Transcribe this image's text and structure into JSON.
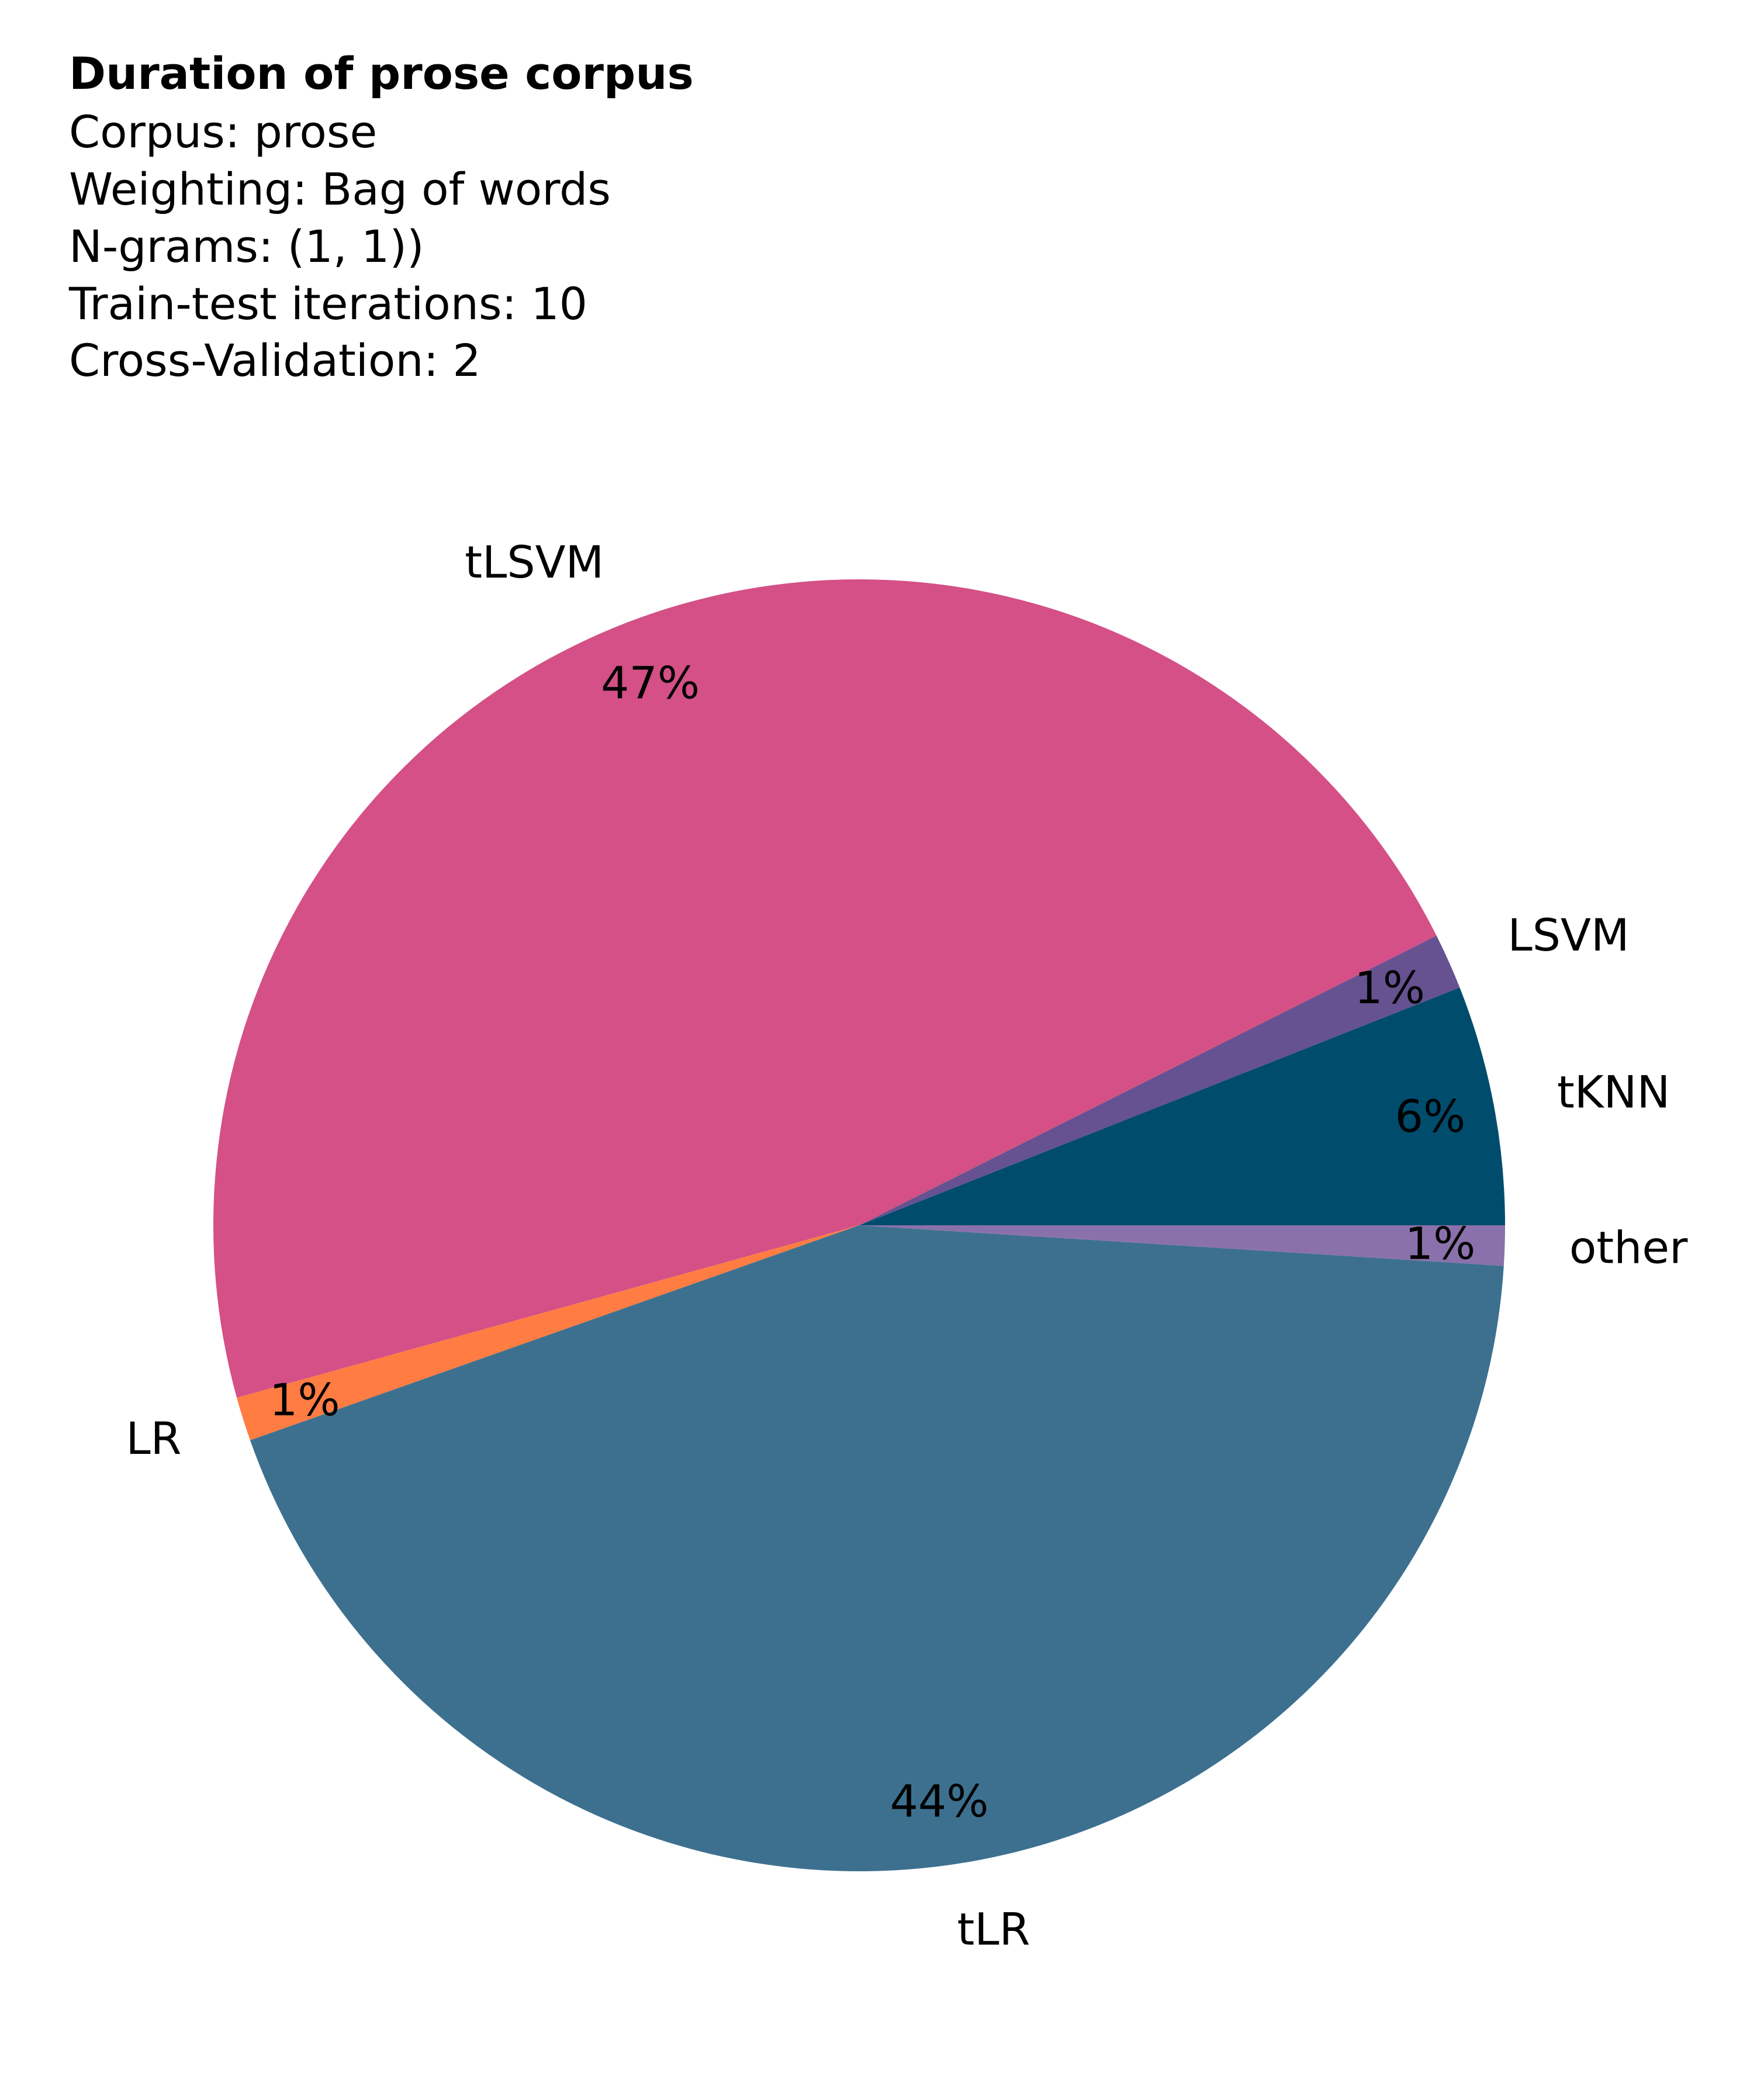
{
  "chart_data": {
    "type": "pie",
    "title": "Duration of prose corpus",
    "subtitle_lines": [
      "Corpus: prose",
      "Weighting: Bag of words",
      "N-grams: (1, 1))",
      "Train-test iterations: 10",
      "Cross-Validation: 2"
    ],
    "start_angle_deg": 0,
    "direction": "counterclockwise",
    "slices": [
      {
        "label": "tKNN",
        "value": 6.0,
        "pct_label": "6%",
        "color": "#004c6d"
      },
      {
        "label": "LSVM",
        "value": 1.4,
        "pct_label": "1%",
        "color": "#665191"
      },
      {
        "label": "tLSVM",
        "value": 46.9,
        "pct_label": "47%",
        "color": "#d45087"
      },
      {
        "label": "LR",
        "value": 1.1,
        "pct_label": "1%",
        "color": "#ff7c43"
      },
      {
        "label": "tLR",
        "value": 43.6,
        "pct_label": "44%",
        "color": "#3d708f"
      },
      {
        "label": "other",
        "value": 1.0,
        "pct_label": "1%",
        "color": "#8b71ab"
      }
    ]
  }
}
